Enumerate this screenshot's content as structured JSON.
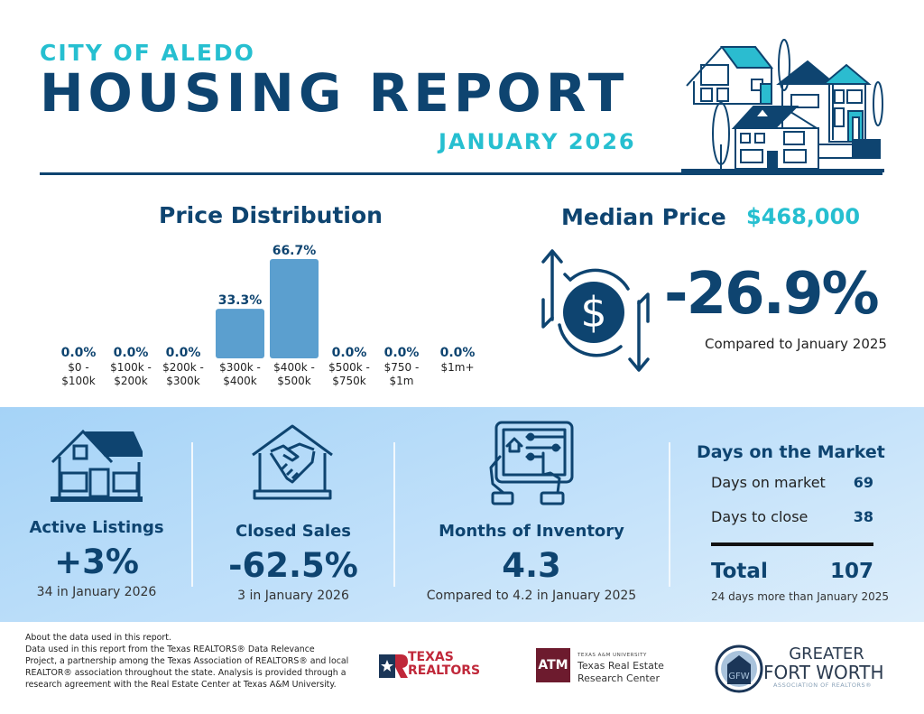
{
  "header": {
    "city": "CITY OF ALEDO",
    "title": "HOUSING REPORT",
    "month": "JANUARY 2026"
  },
  "price_distribution": {
    "title": "Price Distribution"
  },
  "chart_data": {
    "type": "bar",
    "title": "Price Distribution",
    "categories": [
      [
        "$0 -",
        "$100k"
      ],
      [
        "$100k -",
        "$200k"
      ],
      [
        "$200k -",
        "$300k"
      ],
      [
        "$300k -",
        "$400k"
      ],
      [
        "$400k -",
        "$500k"
      ],
      [
        "$500k -",
        "$750k"
      ],
      [
        "$750 -",
        "$1m"
      ],
      [
        "$1m+"
      ]
    ],
    "values": [
      0.0,
      0.0,
      0.0,
      33.3,
      66.7,
      0.0,
      0.0,
      0.0
    ],
    "value_labels": [
      "0.0%",
      "0.0%",
      "0.0%",
      "33.3%",
      "66.7%",
      "0.0%",
      "0.0%",
      "0.0%"
    ],
    "xlabel": "",
    "ylabel": "",
    "ylim": [
      0,
      66.7
    ],
    "grid": false,
    "bar_color": "#5b9fcf"
  },
  "median_price": {
    "label": "Median Price",
    "value": "$468,000",
    "change": "-26.9%",
    "compare": "Compared to January 2025",
    "icon": "dollar-exchange-icon"
  },
  "stats": {
    "active_listings": {
      "icon": "house-icon",
      "title": "Active Listings",
      "value": "+3%",
      "sub": "34 in January 2026"
    },
    "closed_sales": {
      "icon": "handshake-house-icon",
      "title": "Closed Sales",
      "value": "-62.5%",
      "sub": "3 in January 2026"
    },
    "months_inventory": {
      "icon": "tablet-touch-icon",
      "title": "Months of Inventory",
      "value": "4.3",
      "sub": "Compared to 4.2 in January 2025"
    },
    "days_on_market": {
      "title": "Days on the Market",
      "rows": [
        {
          "label": "Days on market",
          "value": "69"
        },
        {
          "label": "Days to close",
          "value": "38"
        }
      ],
      "total_label": "Total",
      "total_value": "107",
      "sub": "24 days more than January 2025"
    }
  },
  "footer": {
    "about_lines": [
      "About the data used in this report.",
      "Data used in this report from the Texas REALTORS® Data Relevance",
      "Project, a partnership among the Texas Association of REALTORS® and local",
      "REALTOR® association throughout the state. Analysis is provided through a",
      "research agreement with the Real Estate Center at Texas A&M University."
    ],
    "logos": {
      "texas_realtors": [
        "TEXAS",
        "REALTORS"
      ],
      "tamu_mark": "ATM",
      "tamu_small": "TEXAS A&M UNIVERSITY",
      "tamu_name": [
        "Texas Real Estate",
        "Research Center"
      ],
      "gfw": [
        "GREATER",
        "FORT WORTH",
        "ASSOCIATION OF REALTORS®"
      ]
    }
  },
  "colors": {
    "navy": "#0e4470",
    "teal": "#26bfd0",
    "bar": "#5b9fcf",
    "band_start": "#a5d3f7",
    "band_end": "#ddeefb"
  }
}
